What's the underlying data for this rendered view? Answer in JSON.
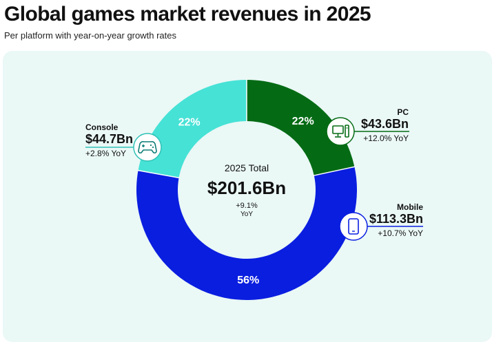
{
  "title": "Global games market revenues in 2025",
  "subtitle": "Per platform with year-on-year growth rates",
  "chart_data": {
    "type": "pie",
    "variant": "donut",
    "categories": [
      "PC",
      "Mobile",
      "Console"
    ],
    "values": [
      43.6,
      113.3,
      44.7
    ],
    "value_labels": [
      "$43.6Bn",
      "$113.3Bn",
      "$44.7Bn"
    ],
    "percent_labels": [
      "22%",
      "56%",
      "22%"
    ],
    "yoy_labels": [
      "+12.0% YoY",
      "+10.7% YoY",
      "+2.8% YoY"
    ],
    "colors": [
      "#046b14",
      "#0a1ee0",
      "#46e2d6"
    ],
    "icons": [
      "desktop-pc-icon",
      "smartphone-icon",
      "gamepad-icon"
    ],
    "total": {
      "label": "2025 Total",
      "value": "$201.6Bn",
      "growth": "+9.1%",
      "growth_unit": "YoY"
    }
  },
  "callouts": {
    "pc": {
      "name": "PC",
      "value": "$43.6Bn",
      "yoy": "+12.0% YoY"
    },
    "mobile": {
      "name": "Mobile",
      "value": "$113.3Bn",
      "yoy": "+10.7% YoY"
    },
    "console": {
      "name": "Console",
      "value": "$44.7Bn",
      "yoy": "+2.8% YoY"
    }
  }
}
